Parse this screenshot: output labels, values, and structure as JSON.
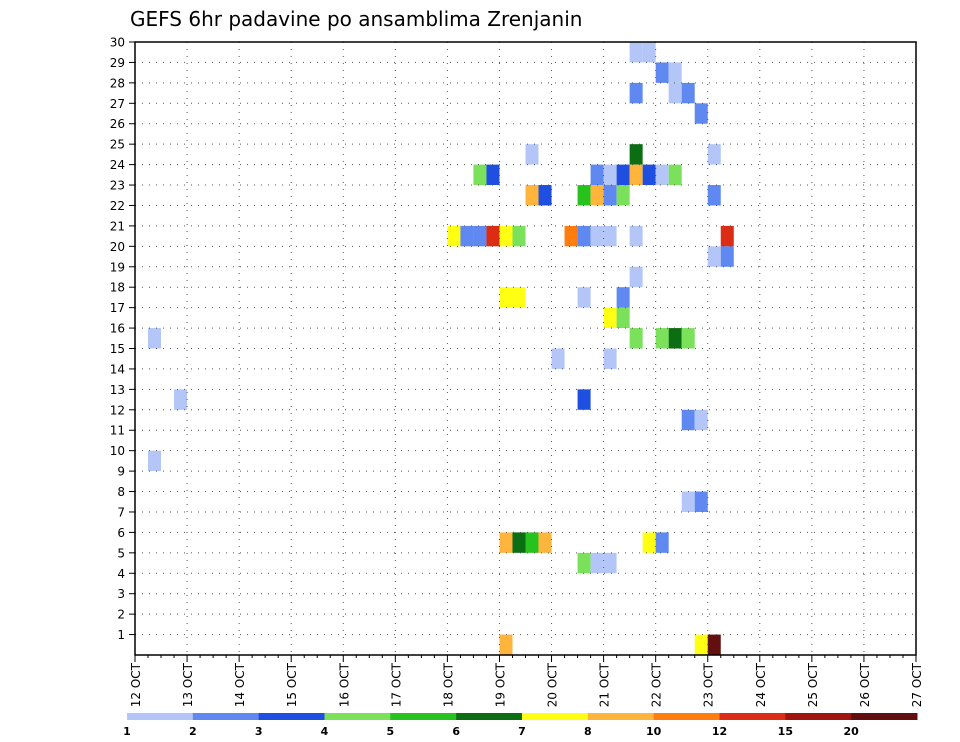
{
  "chart_data": {
    "type": "heatmap",
    "title": "GEFS 6hr padavine po ansamblima Zrenjanin",
    "xlabel": "",
    "ylabel": "",
    "x_tick_labels": [
      "12 OCT",
      "13 OCT",
      "14 OCT",
      "15 OCT",
      "16 OCT",
      "17 OCT",
      "18 OCT",
      "19 OCT",
      "20 OCT",
      "21 OCT",
      "22 OCT",
      "23 OCT",
      "24 OCT",
      "25 OCT",
      "26 OCT",
      "27 OCT"
    ],
    "x_range_days": [
      0,
      15
    ],
    "x_step_hours": 6,
    "y_tick_labels": [
      "1",
      "2",
      "3",
      "4",
      "5",
      "6",
      "7",
      "8",
      "9",
      "10",
      "11",
      "12",
      "13",
      "14",
      "15",
      "16",
      "17",
      "18",
      "19",
      "20",
      "21",
      "22",
      "23",
      "24",
      "25",
      "26",
      "27",
      "28",
      "29",
      "30"
    ],
    "y_range_members": [
      0,
      30
    ],
    "grid": true,
    "legend_placement": "bottom",
    "colorbar": {
      "labels": [
        "1",
        "2",
        "3",
        "4",
        "5",
        "6",
        "7",
        "8",
        "10",
        "12",
        "15",
        "20"
      ],
      "colors": [
        "#b3c6f7",
        "#5f88f0",
        "#1e4fe0",
        "#7be05a",
        "#28c21e",
        "#0b6e12",
        "#ffff14",
        "#ffb43c",
        "#ff7d0f",
        "#dc2d14",
        "#a0140f",
        "#640f0f"
      ]
    },
    "cells": [
      {
        "m": 30,
        "s": 38,
        "c": 0
      },
      {
        "m": 30,
        "s": 39,
        "c": 0
      },
      {
        "m": 29,
        "s": 40,
        "c": 1
      },
      {
        "m": 29,
        "s": 41,
        "c": 0
      },
      {
        "m": 28,
        "s": 38,
        "c": 1
      },
      {
        "m": 28,
        "s": 41,
        "c": 0
      },
      {
        "m": 28,
        "s": 42,
        "c": 1
      },
      {
        "m": 27,
        "s": 43,
        "c": 1
      },
      {
        "m": 25,
        "s": 30,
        "c": 0
      },
      {
        "m": 25,
        "s": 38,
        "c": 5
      },
      {
        "m": 25,
        "s": 44,
        "c": 0
      },
      {
        "m": 24,
        "s": 26,
        "c": 3
      },
      {
        "m": 24,
        "s": 27,
        "c": 2
      },
      {
        "m": 24,
        "s": 35,
        "c": 1
      },
      {
        "m": 24,
        "s": 36,
        "c": 0
      },
      {
        "m": 24,
        "s": 37,
        "c": 2
      },
      {
        "m": 24,
        "s": 38,
        "c": 7
      },
      {
        "m": 24,
        "s": 39,
        "c": 2
      },
      {
        "m": 24,
        "s": 40,
        "c": 0
      },
      {
        "m": 24,
        "s": 41,
        "c": 3
      },
      {
        "m": 23,
        "s": 30,
        "c": 7
      },
      {
        "m": 23,
        "s": 31,
        "c": 2
      },
      {
        "m": 23,
        "s": 34,
        "c": 4
      },
      {
        "m": 23,
        "s": 35,
        "c": 7
      },
      {
        "m": 23,
        "s": 36,
        "c": 1
      },
      {
        "m": 23,
        "s": 37,
        "c": 3
      },
      {
        "m": 23,
        "s": 44,
        "c": 1
      },
      {
        "m": 21,
        "s": 24,
        "c": 6
      },
      {
        "m": 21,
        "s": 25,
        "c": 1
      },
      {
        "m": 21,
        "s": 26,
        "c": 1
      },
      {
        "m": 21,
        "s": 27,
        "c": 9
      },
      {
        "m": 21,
        "s": 28,
        "c": 6
      },
      {
        "m": 21,
        "s": 29,
        "c": 3
      },
      {
        "m": 21,
        "s": 33,
        "c": 8
      },
      {
        "m": 21,
        "s": 34,
        "c": 1
      },
      {
        "m": 21,
        "s": 35,
        "c": 0
      },
      {
        "m": 21,
        "s": 36,
        "c": 0
      },
      {
        "m": 21,
        "s": 38,
        "c": 0
      },
      {
        "m": 21,
        "s": 45,
        "c": 9
      },
      {
        "m": 20,
        "s": 44,
        "c": 0
      },
      {
        "m": 20,
        "s": 45,
        "c": 1
      },
      {
        "m": 19,
        "s": 38,
        "c": 0
      },
      {
        "m": 18,
        "s": 28,
        "c": 6
      },
      {
        "m": 18,
        "s": 29,
        "c": 6
      },
      {
        "m": 18,
        "s": 34,
        "c": 0
      },
      {
        "m": 18,
        "s": 37,
        "c": 1
      },
      {
        "m": 17,
        "s": 36,
        "c": 6
      },
      {
        "m": 17,
        "s": 37,
        "c": 3
      },
      {
        "m": 16,
        "s": 1,
        "c": 0
      },
      {
        "m": 16,
        "s": 38,
        "c": 3
      },
      {
        "m": 16,
        "s": 40,
        "c": 3
      },
      {
        "m": 16,
        "s": 41,
        "c": 5
      },
      {
        "m": 16,
        "s": 42,
        "c": 3
      },
      {
        "m": 15,
        "s": 32,
        "c": 0
      },
      {
        "m": 15,
        "s": 36,
        "c": 0
      },
      {
        "m": 13,
        "s": 3,
        "c": 0
      },
      {
        "m": 13,
        "s": 34,
        "c": 2
      },
      {
        "m": 12,
        "s": 42,
        "c": 1
      },
      {
        "m": 12,
        "s": 43,
        "c": 0
      },
      {
        "m": 10,
        "s": 1,
        "c": 0
      },
      {
        "m": 8,
        "s": 42,
        "c": 0
      },
      {
        "m": 8,
        "s": 43,
        "c": 1
      },
      {
        "m": 6,
        "s": 28,
        "c": 7
      },
      {
        "m": 6,
        "s": 29,
        "c": 5
      },
      {
        "m": 6,
        "s": 30,
        "c": 4
      },
      {
        "m": 6,
        "s": 31,
        "c": 7
      },
      {
        "m": 6,
        "s": 39,
        "c": 6
      },
      {
        "m": 6,
        "s": 40,
        "c": 1
      },
      {
        "m": 5,
        "s": 34,
        "c": 3
      },
      {
        "m": 5,
        "s": 35,
        "c": 0
      },
      {
        "m": 5,
        "s": 36,
        "c": 0
      },
      {
        "m": 1,
        "s": 28,
        "c": 7
      },
      {
        "m": 1,
        "s": 43,
        "c": 6
      },
      {
        "m": 1,
        "s": 44,
        "c": 11
      }
    ]
  }
}
